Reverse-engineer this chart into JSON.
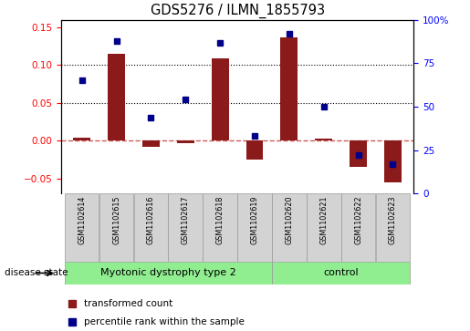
{
  "title": "GDS5276 / ILMN_1855793",
  "samples": [
    "GSM1102614",
    "GSM1102615",
    "GSM1102616",
    "GSM1102617",
    "GSM1102618",
    "GSM1102619",
    "GSM1102620",
    "GSM1102621",
    "GSM1102622",
    "GSM1102623"
  ],
  "transformed_count": [
    0.004,
    0.115,
    -0.008,
    -0.003,
    0.109,
    -0.025,
    0.137,
    0.003,
    -0.035,
    -0.055
  ],
  "percentile_rank": [
    65,
    88,
    44,
    54,
    87,
    33,
    92,
    50,
    22,
    17
  ],
  "disease_groups": [
    {
      "label": "Myotonic dystrophy type 2",
      "start": 0,
      "end": 5,
      "color": "#90EE90"
    },
    {
      "label": "control",
      "start": 6,
      "end": 9,
      "color": "#90EE90"
    }
  ],
  "ylim_left": [
    -0.07,
    0.16
  ],
  "ylim_right": [
    0,
    100
  ],
  "yticks_left": [
    -0.05,
    0.0,
    0.05,
    0.1,
    0.15
  ],
  "yticks_right": [
    0,
    25,
    50,
    75,
    100
  ],
  "bar_color": "#8B1A1A",
  "dot_color": "#00008B",
  "zero_line_color": "#CD5C5C",
  "dot_gridline_values": [
    0.05,
    0.1
  ],
  "label_transformed": "transformed count",
  "label_percentile": "percentile rank within the sample",
  "disease_state_label": "disease state",
  "bg_sample_color": "#D3D3D3"
}
